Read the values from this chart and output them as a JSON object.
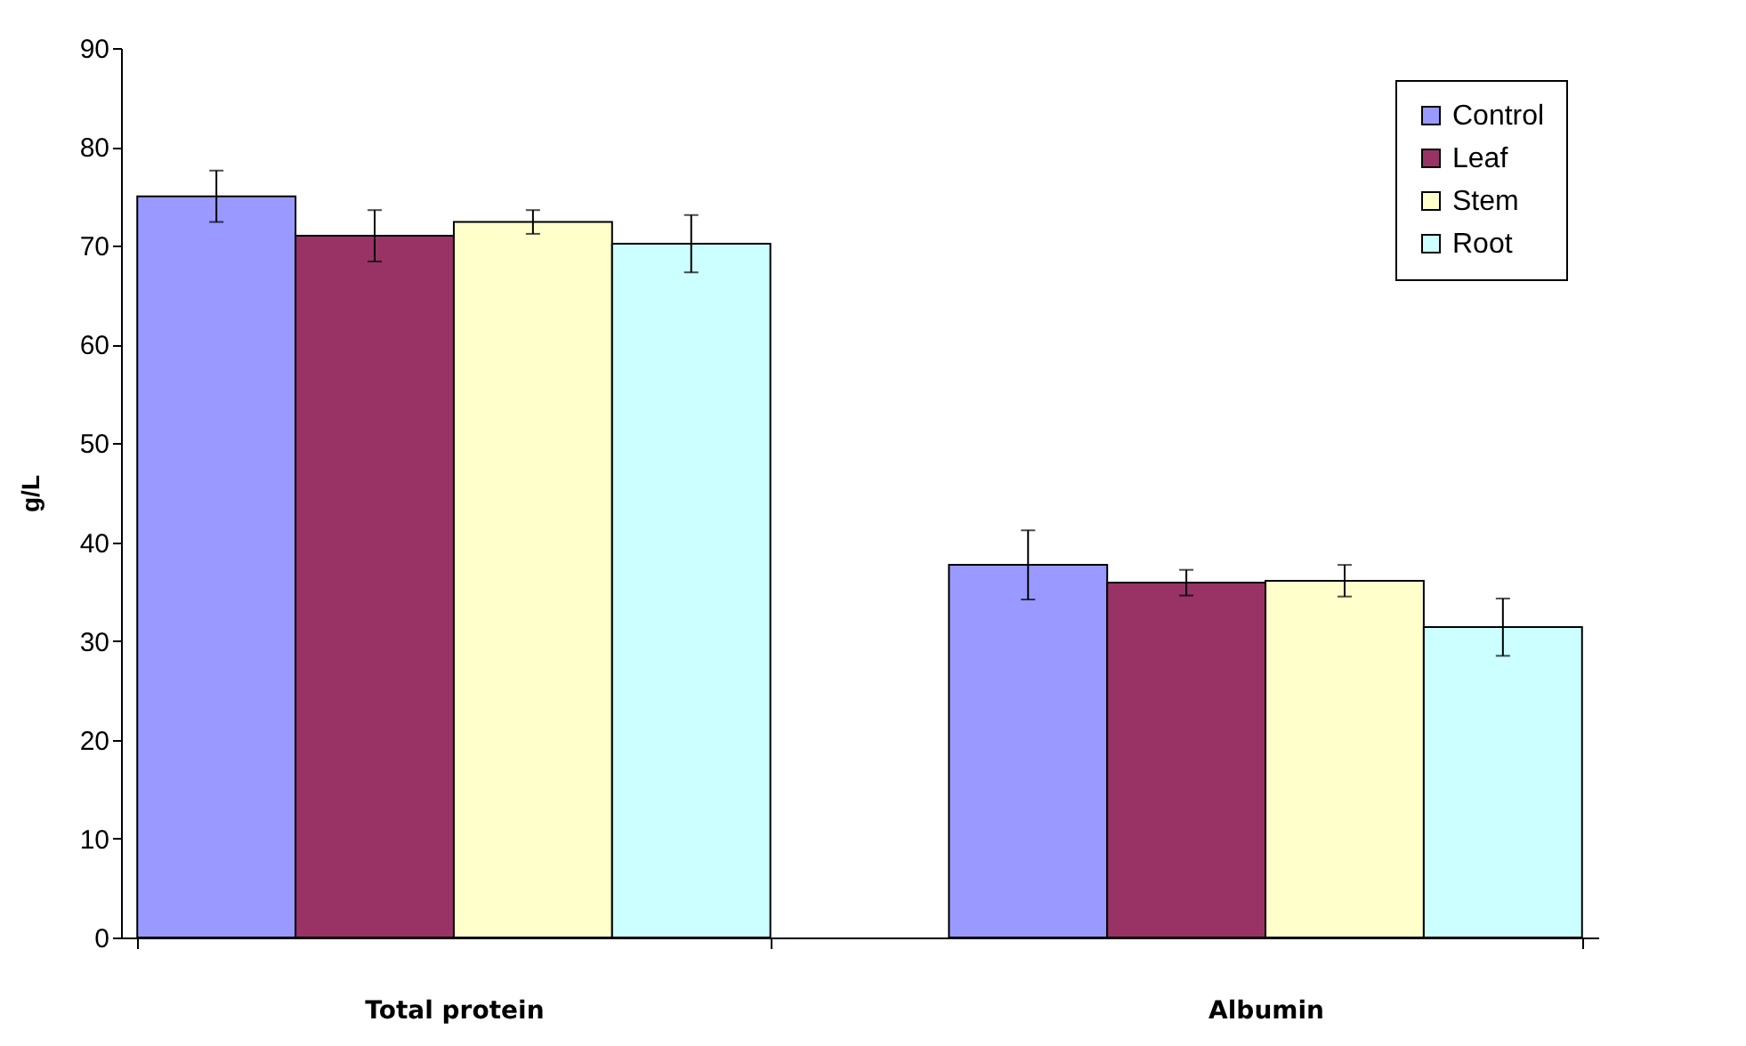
{
  "chart_data": {
    "type": "bar",
    "ylabel": "g/L",
    "categories": [
      "Total protein",
      "Albumin"
    ],
    "series": [
      {
        "name": "Control",
        "color": "#9999ff",
        "values": [
          75.0,
          37.7
        ],
        "errors": [
          2.6,
          3.5
        ]
      },
      {
        "name": "Leaf",
        "color": "#993366",
        "values": [
          71.0,
          35.9
        ],
        "errors": [
          2.6,
          1.3
        ]
      },
      {
        "name": "Stem",
        "color": "#ffffcc",
        "values": [
          72.4,
          36.1
        ],
        "errors": [
          1.2,
          1.6
        ]
      },
      {
        "name": "Root",
        "color": "#ccffff",
        "values": [
          70.2,
          31.4
        ],
        "errors": [
          2.9,
          2.9
        ]
      }
    ],
    "ylim": [
      0,
      90
    ],
    "yticks": [
      0,
      10,
      20,
      30,
      40,
      50,
      60,
      70,
      80,
      90
    ],
    "grid": false,
    "legend": "top right"
  }
}
